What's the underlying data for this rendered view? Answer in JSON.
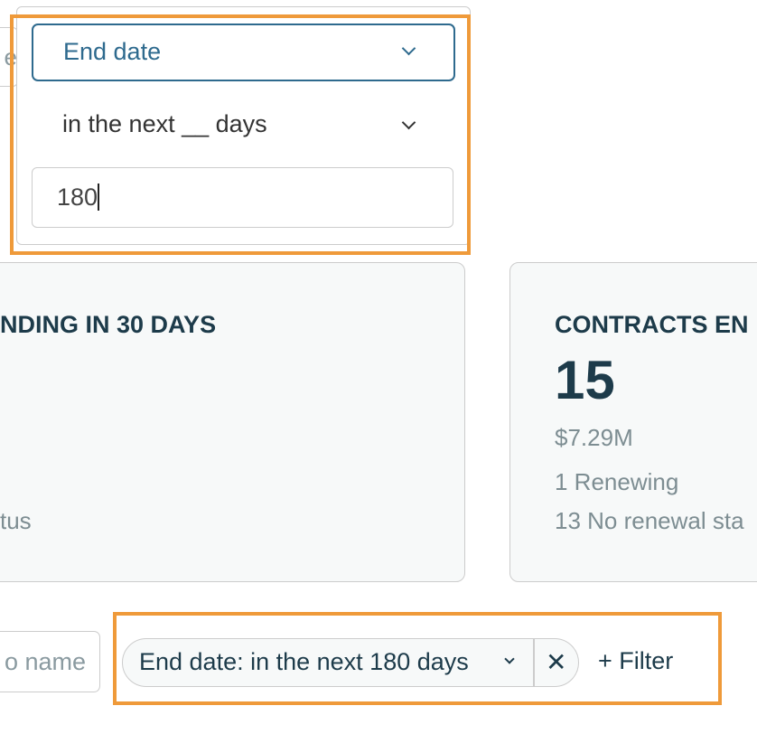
{
  "background": {
    "input_fragment": "e"
  },
  "filter_editor": {
    "field_select": {
      "value": "End date",
      "icon": "chevron-down-icon"
    },
    "operator_select": {
      "value": "in the next __ days",
      "icon": "chevron-down-icon"
    },
    "value_input": {
      "value": "180"
    }
  },
  "cards": [
    {
      "title": "NDING IN 30 DAYS",
      "line": "tus"
    },
    {
      "title": "CONTRACTS EN",
      "count": "15",
      "amount": "$7.29M",
      "renewing": "1 Renewing",
      "no_renewal": "13 No renewal sta"
    }
  ],
  "toolbar": {
    "search_placeholder": "o name",
    "active_filter": {
      "label": "End date: in the next 180 days",
      "remove_icon": "close-icon"
    },
    "add_filter_label": "+ Filter"
  },
  "colors": {
    "highlight": "#ef9a3a",
    "accent": "#2e6a8e",
    "text": "#1d3b4a"
  }
}
